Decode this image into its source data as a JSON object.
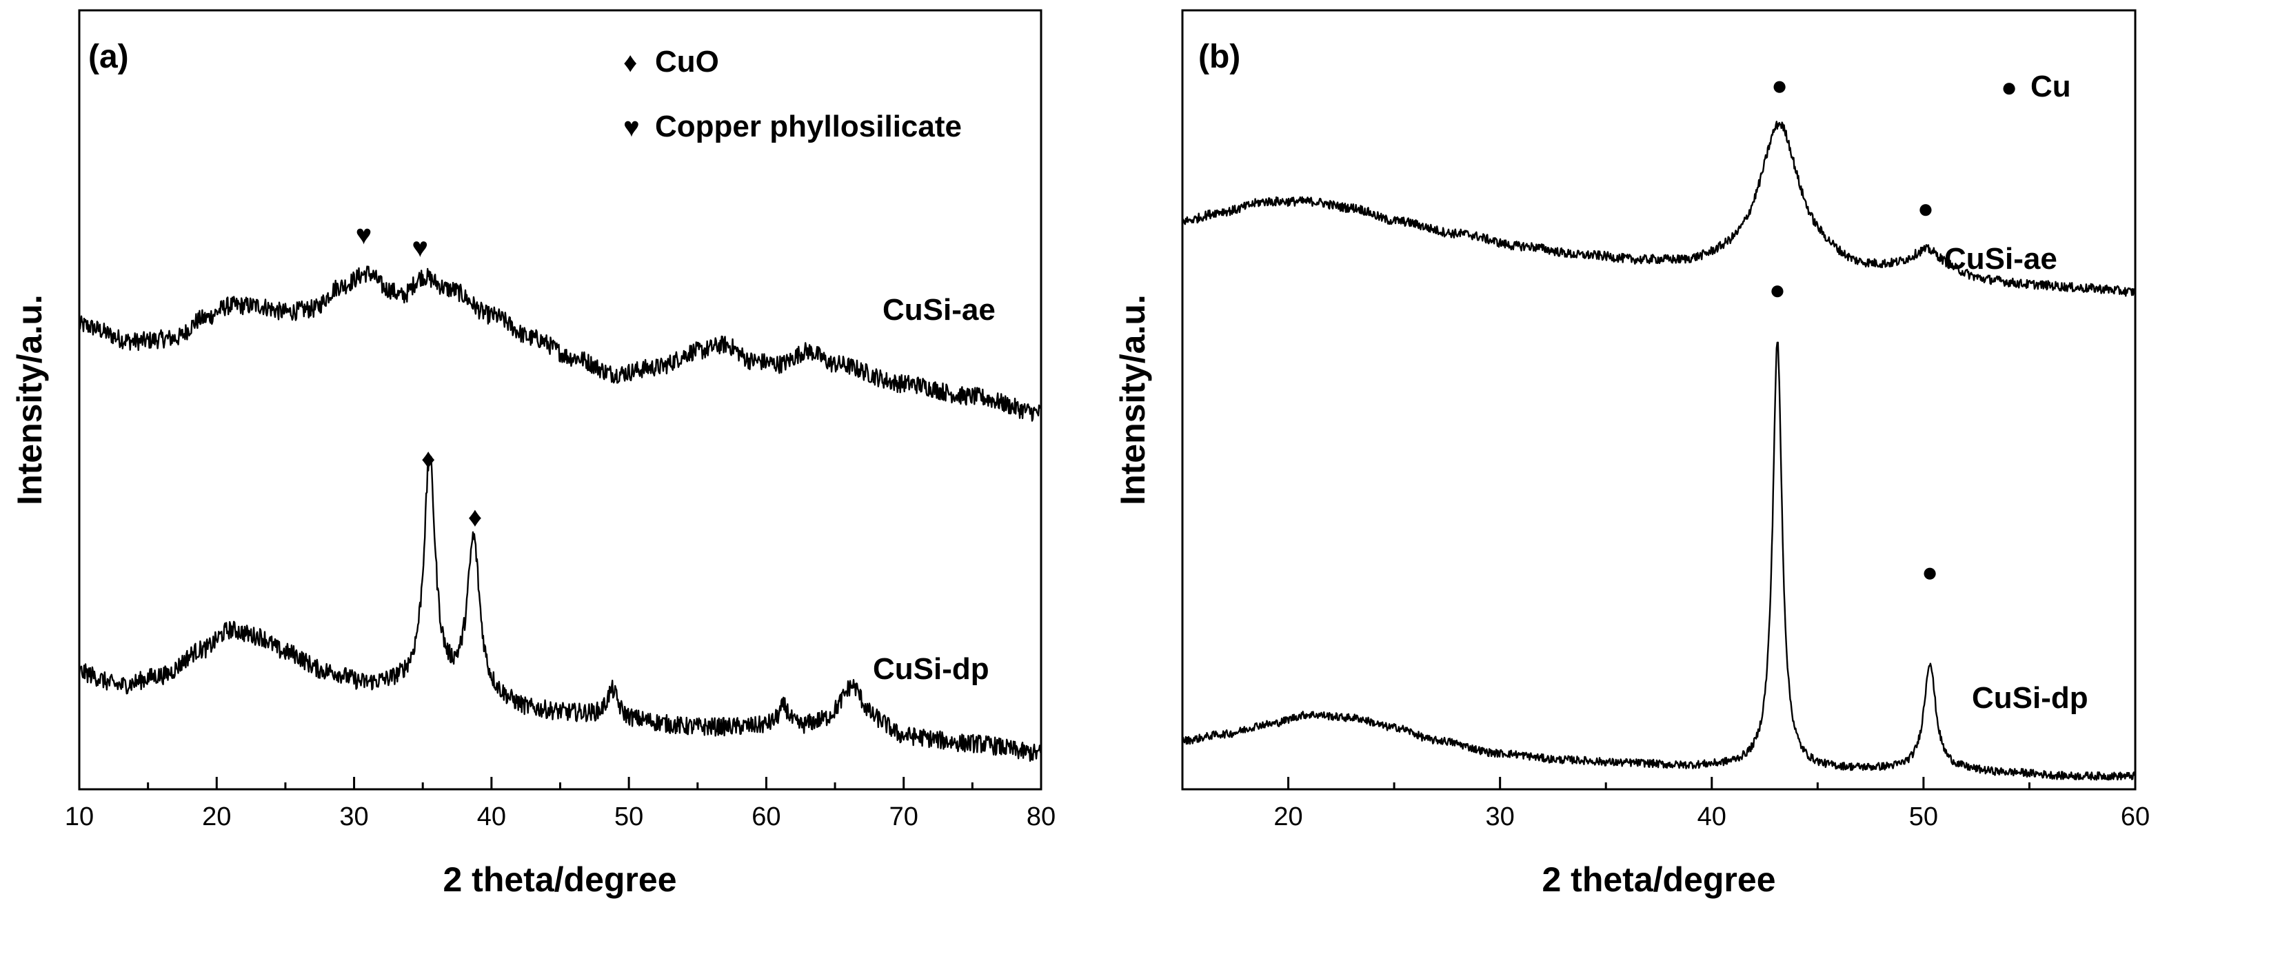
{
  "chart_data": [
    {
      "type": "line",
      "panel_label": "(a)",
      "xlabel": "2 theta/degree",
      "ylabel": "Intensity/a.u.",
      "xlim": [
        10,
        80
      ],
      "ylim": [
        0,
        12
      ],
      "x_ticks": [
        10,
        20,
        30,
        40,
        50,
        60,
        70,
        80
      ],
      "x_tick_labels": [
        "10",
        "20",
        "30",
        "40",
        "50",
        "60",
        "70",
        "80"
      ],
      "minor_x_ticks": [
        15,
        25,
        35,
        45,
        55,
        65,
        75
      ],
      "grid": false,
      "legend": [
        {
          "symbol": "diamond",
          "glyph": "♦",
          "label": "CuO"
        },
        {
          "symbol": "heart",
          "glyph": "♥",
          "label": "Copper phyllosilicate"
        }
      ],
      "series": [
        {
          "name": "CuSi-ae",
          "label": "CuSi-ae",
          "noise": 0.14,
          "points": [
            [
              10,
              7.15
            ],
            [
              14,
              6.9
            ],
            [
              17,
              6.95
            ],
            [
              19,
              7.25
            ],
            [
              21,
              7.45
            ],
            [
              23,
              7.45
            ],
            [
              25,
              7.35
            ],
            [
              27,
              7.4
            ],
            [
              29,
              7.75
            ],
            [
              31,
              7.95
            ],
            [
              32.5,
              7.7
            ],
            [
              33.5,
              7.6
            ],
            [
              35,
              7.9
            ],
            [
              37,
              7.7
            ],
            [
              40,
              7.3
            ],
            [
              43,
              6.95
            ],
            [
              46,
              6.65
            ],
            [
              49,
              6.4
            ],
            [
              52,
              6.5
            ],
            [
              55,
              6.75
            ],
            [
              57,
              6.85
            ],
            [
              59,
              6.6
            ],
            [
              61,
              6.55
            ],
            [
              63,
              6.75
            ],
            [
              65,
              6.55
            ],
            [
              70,
              6.25
            ],
            [
              75,
              6.05
            ],
            [
              80,
              5.8
            ]
          ],
          "peaks": []
        },
        {
          "name": "CuSi-dp",
          "label": "CuSi-dp",
          "noise": 0.14,
          "points": [
            [
              10,
              1.8
            ],
            [
              13,
              1.6
            ],
            [
              16,
              1.75
            ],
            [
              19,
              2.15
            ],
            [
              21,
              2.45
            ],
            [
              23,
              2.35
            ],
            [
              25,
              2.1
            ],
            [
              28,
              1.8
            ],
            [
              31,
              1.6
            ],
            [
              34,
              1.6
            ],
            [
              37,
              1.5
            ],
            [
              40,
              1.35
            ],
            [
              43,
              1.2
            ],
            [
              46,
              1.15
            ],
            [
              50,
              1.05
            ],
            [
              55,
              0.95
            ],
            [
              58,
              0.95
            ],
            [
              60,
              0.95
            ],
            [
              62,
              0.9
            ],
            [
              64,
              1.0
            ],
            [
              66,
              1.15
            ],
            [
              68,
              1.0
            ],
            [
              70,
              0.8
            ],
            [
              75,
              0.7
            ],
            [
              80,
              0.55
            ]
          ],
          "peaks": [
            {
              "x": 35.5,
              "height": 3.5,
              "width": 0.5
            },
            {
              "x": 38.7,
              "height": 2.4,
              "width": 0.55
            },
            {
              "x": 48.8,
              "height": 0.45,
              "width": 0.5
            },
            {
              "x": 61.3,
              "height": 0.35,
              "width": 0.5
            },
            {
              "x": 66.3,
              "height": 0.45,
              "width": 0.9
            }
          ]
        }
      ],
      "markers": [
        {
          "symbol": "heart",
          "glyph": "♥",
          "x": 30.7,
          "y": 8.55
        },
        {
          "symbol": "heart",
          "glyph": "♥",
          "x": 34.8,
          "y": 8.35
        },
        {
          "symbol": "diamond",
          "glyph": "♦",
          "x": 35.4,
          "y": 5.1
        },
        {
          "symbol": "diamond",
          "glyph": "♦",
          "x": 38.8,
          "y": 4.2
        }
      ]
    },
    {
      "type": "line",
      "panel_label": "(b)",
      "xlabel": "2 theta/degree",
      "ylabel": "Intensity/a.u.",
      "xlim": [
        15,
        60
      ],
      "ylim": [
        0,
        12
      ],
      "x_ticks": [
        20,
        30,
        40,
        50,
        60
      ],
      "x_tick_labels": [
        "20",
        "30",
        "40",
        "50",
        "60"
      ],
      "minor_x_ticks": [
        25,
        35,
        45,
        55
      ],
      "grid": false,
      "legend": [
        {
          "symbol": "dot",
          "glyph": "●",
          "label": "Cu"
        }
      ],
      "series": [
        {
          "name": "CuSi-ae",
          "label": "CuSi-ae",
          "noise": 0.07,
          "points": [
            [
              15,
              8.75
            ],
            [
              17,
              8.9
            ],
            [
              19,
              9.05
            ],
            [
              21,
              9.05
            ],
            [
              23,
              8.95
            ],
            [
              25,
              8.75
            ],
            [
              28,
              8.55
            ],
            [
              31,
              8.35
            ],
            [
              34,
              8.2
            ],
            [
              37,
              8.1
            ],
            [
              39,
              8.05
            ],
            [
              41,
              8.1
            ],
            [
              43,
              8.2
            ],
            [
              45,
              8.1
            ],
            [
              47,
              7.95
            ],
            [
              49,
              7.95
            ],
            [
              51,
              7.9
            ],
            [
              53,
              7.8
            ],
            [
              55,
              7.75
            ],
            [
              58,
              7.7
            ],
            [
              60,
              7.65
            ]
          ],
          "peaks": [
            {
              "x": 43.2,
              "height": 2.05,
              "width": 1.1
            },
            {
              "x": 50.2,
              "height": 0.35,
              "width": 0.9
            }
          ]
        },
        {
          "name": "CuSi-dp",
          "label": "CuSi-dp",
          "noise": 0.06,
          "points": [
            [
              15,
              0.75
            ],
            [
              17,
              0.85
            ],
            [
              19,
              1.0
            ],
            [
              21,
              1.15
            ],
            [
              23,
              1.1
            ],
            [
              25,
              0.95
            ],
            [
              27,
              0.75
            ],
            [
              30,
              0.55
            ],
            [
              33,
              0.45
            ],
            [
              36,
              0.4
            ],
            [
              39,
              0.35
            ],
            [
              42,
              0.35
            ],
            [
              45,
              0.3
            ],
            [
              48,
              0.3
            ],
            [
              51,
              0.3
            ],
            [
              54,
              0.25
            ],
            [
              57,
              0.2
            ],
            [
              60,
              0.2
            ]
          ],
          "peaks": [
            {
              "x": 43.1,
              "height": 6.55,
              "width": 0.27
            },
            {
              "x": 50.3,
              "height": 1.65,
              "width": 0.33
            }
          ]
        }
      ],
      "markers": [
        {
          "symbol": "dot",
          "glyph": "●",
          "x": 43.2,
          "y": 10.85
        },
        {
          "symbol": "dot",
          "glyph": "●",
          "x": 50.1,
          "y": 8.95
        },
        {
          "symbol": "dot",
          "glyph": "●",
          "x": 43.1,
          "y": 7.7
        },
        {
          "symbol": "dot",
          "glyph": "●",
          "x": 50.3,
          "y": 3.35
        }
      ]
    }
  ]
}
